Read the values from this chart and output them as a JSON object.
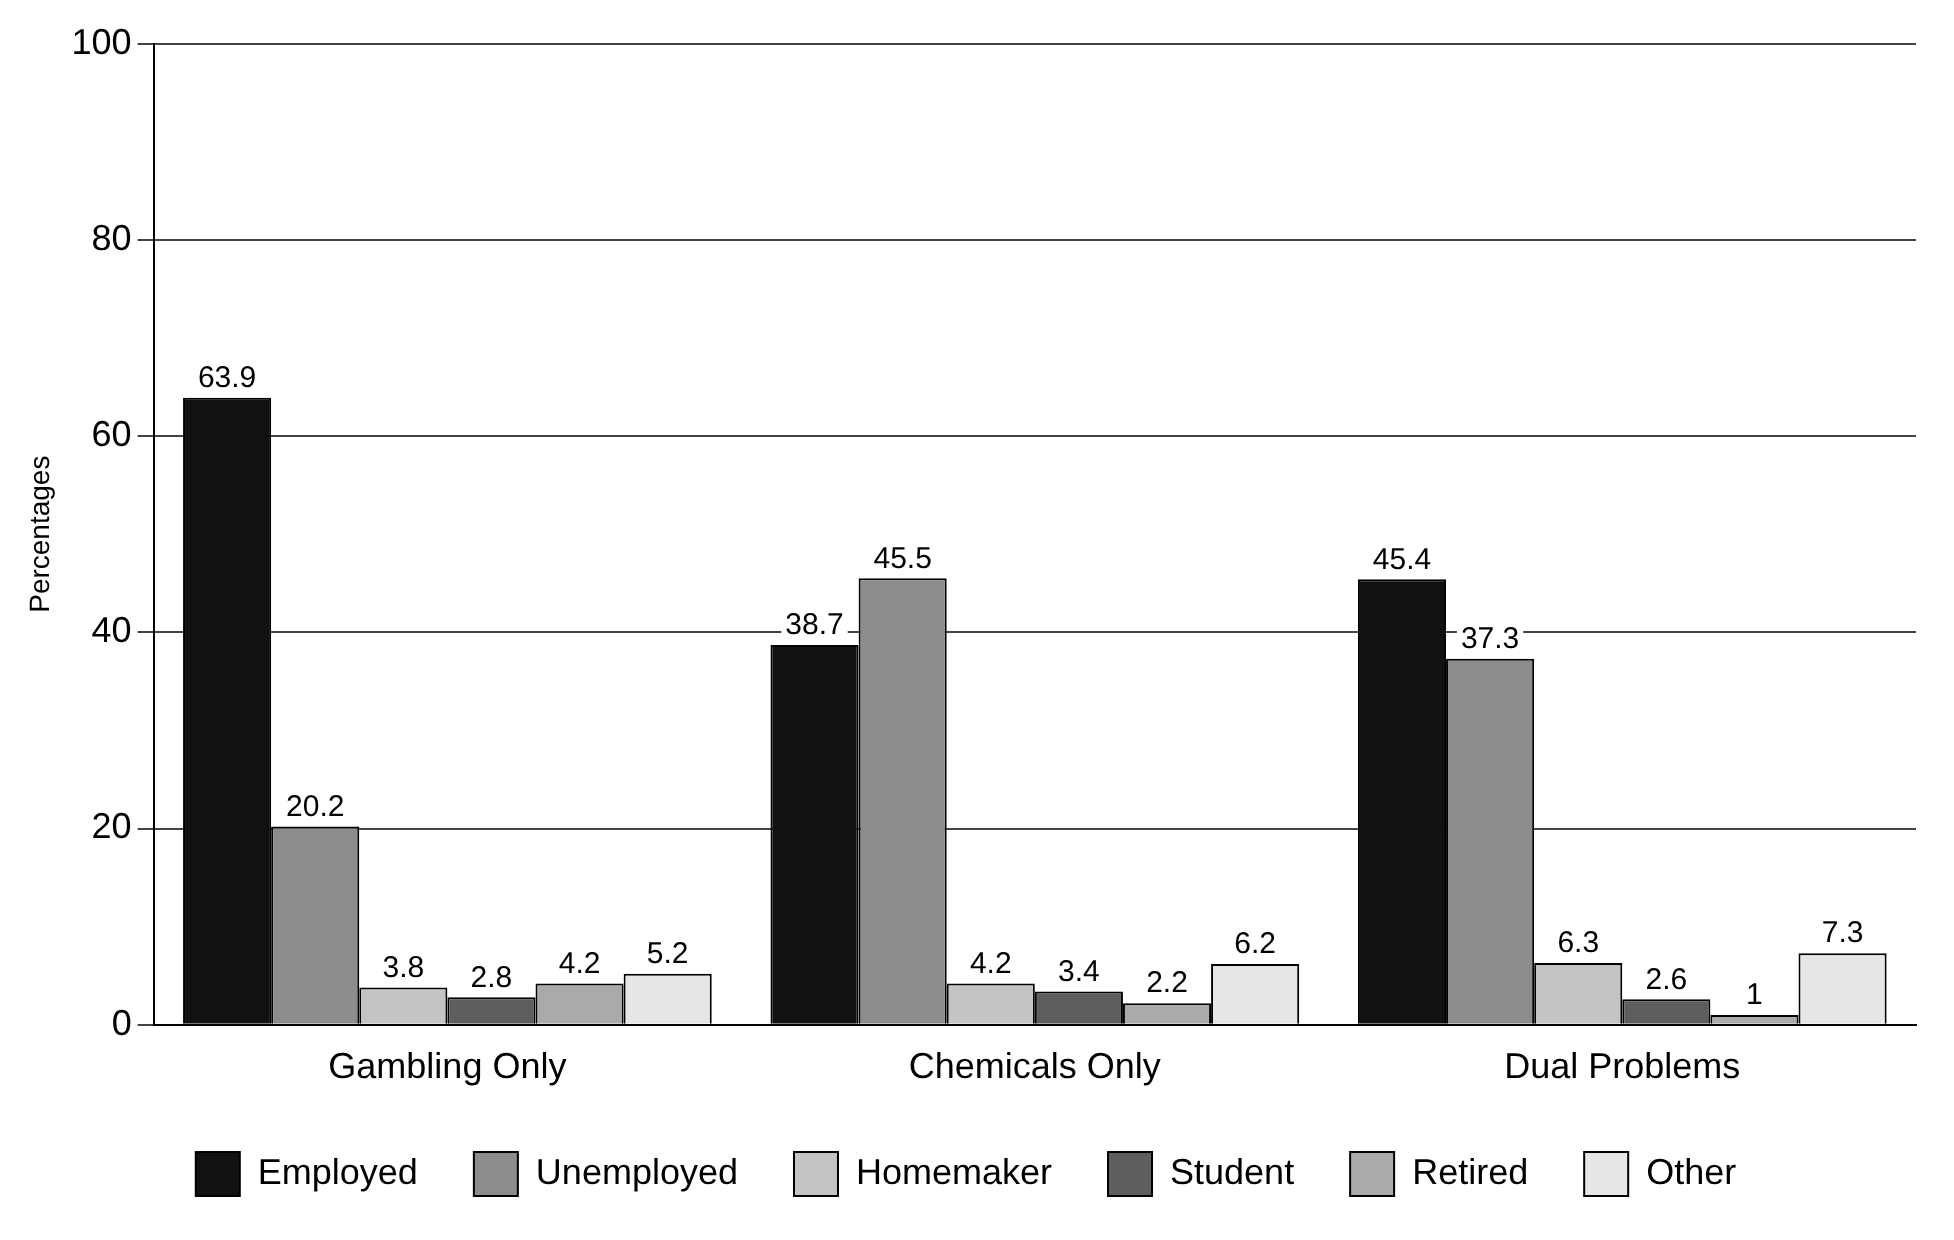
{
  "chart_data": {
    "type": "bar",
    "ylabel": "Percentages",
    "categories": [
      "Gambling Only",
      "Chemicals Only",
      "Dual Problems"
    ],
    "series": [
      {
        "name": "Employed",
        "color": "#111111",
        "values": [
          63.9,
          38.7,
          45.4
        ]
      },
      {
        "name": "Unemployed",
        "color": "#8c8c8c",
        "values": [
          20.2,
          45.5,
          37.3
        ]
      },
      {
        "name": "Homemaker",
        "color": "#c4c4c4",
        "values": [
          3.8,
          4.2,
          6.3
        ]
      },
      {
        "name": "Student",
        "color": "#5e5e5e",
        "values": [
          2.8,
          3.4,
          2.6
        ]
      },
      {
        "name": "Retired",
        "color": "#aaaaaa",
        "values": [
          4.2,
          2.2,
          1
        ]
      },
      {
        "name": "Other",
        "color": "#e6e6e6",
        "values": [
          5.2,
          6.2,
          7.3
        ]
      }
    ],
    "ylim": [
      0,
      100
    ],
    "yticks": [
      0,
      20,
      40,
      60,
      80,
      100
    ],
    "grid": "y",
    "legend": "bottom",
    "data_labels": true
  }
}
